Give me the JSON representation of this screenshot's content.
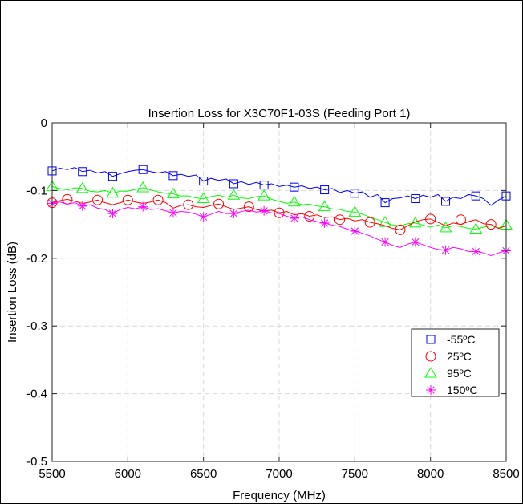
{
  "chart_data": {
    "type": "line",
    "title": "Insertion Loss for X3C70F1-03S (Feeding Port 1)",
    "xlabel": "Frequency (MHz)",
    "ylabel": "Insertion Loss (dB)",
    "xlim": [
      5500,
      8500
    ],
    "ylim": [
      -0.5,
      0
    ],
    "xticks": [
      5500,
      6000,
      6500,
      7000,
      7500,
      8000,
      8500
    ],
    "xtick_labels": [
      "5500",
      "6000",
      "6500",
      "7000",
      "7500",
      "8000",
      "8500"
    ],
    "yticks": [
      0,
      -0.1,
      -0.2,
      -0.3,
      -0.4,
      -0.5
    ],
    "ytick_labels": [
      "0",
      "-0.1",
      "-0.2",
      "-0.3",
      "-0.4",
      "-0.5"
    ],
    "grid": true,
    "legend_position": "lower-right",
    "series": [
      {
        "name": "-55ºC",
        "color": "#0000ff",
        "marker": "square",
        "x": [
          5500,
          5550,
          5600,
          5650,
          5700,
          5750,
          5800,
          5850,
          5900,
          5950,
          6000,
          6050,
          6100,
          6150,
          6200,
          6250,
          6300,
          6350,
          6400,
          6450,
          6500,
          6550,
          6600,
          6650,
          6700,
          6750,
          6800,
          6850,
          6900,
          6950,
          7000,
          7050,
          7100,
          7150,
          7200,
          7250,
          7300,
          7350,
          7400,
          7450,
          7500,
          7550,
          7600,
          7650,
          7700,
          7750,
          7800,
          7850,
          7900,
          7950,
          8000,
          8050,
          8100,
          8150,
          8200,
          8250,
          8300,
          8350,
          8400,
          8450,
          8500
        ],
        "y": [
          -0.071,
          -0.067,
          -0.069,
          -0.066,
          -0.072,
          -0.07,
          -0.074,
          -0.072,
          -0.079,
          -0.075,
          -0.072,
          -0.07,
          -0.069,
          -0.072,
          -0.074,
          -0.072,
          -0.078,
          -0.076,
          -0.079,
          -0.077,
          -0.086,
          -0.082,
          -0.085,
          -0.083,
          -0.09,
          -0.087,
          -0.091,
          -0.088,
          -0.092,
          -0.09,
          -0.094,
          -0.092,
          -0.095,
          -0.093,
          -0.097,
          -0.095,
          -0.099,
          -0.097,
          -0.103,
          -0.1,
          -0.104,
          -0.102,
          -0.11,
          -0.106,
          -0.118,
          -0.112,
          -0.111,
          -0.108,
          -0.112,
          -0.107,
          -0.11,
          -0.106,
          -0.116,
          -0.11,
          -0.112,
          -0.106,
          -0.108,
          -0.112,
          -0.122,
          -0.114,
          -0.108
        ],
        "marker_x": [
          5500,
          5700,
          5900,
          6100,
          6300,
          6500,
          6700,
          6900,
          7100,
          7300,
          7500,
          7700,
          7900,
          8100,
          8300,
          8500
        ],
        "marker_y": [
          -0.071,
          -0.072,
          -0.079,
          -0.069,
          -0.078,
          -0.086,
          -0.09,
          -0.092,
          -0.095,
          -0.099,
          -0.104,
          -0.118,
          -0.112,
          -0.116,
          -0.108,
          -0.108
        ]
      },
      {
        "name": "25ºC",
        "color": "#ff0000",
        "marker": "circle",
        "x": [
          5500,
          5550,
          5600,
          5650,
          5700,
          5750,
          5800,
          5850,
          5900,
          5950,
          6000,
          6050,
          6100,
          6150,
          6200,
          6250,
          6300,
          6350,
          6400,
          6450,
          6500,
          6550,
          6600,
          6650,
          6700,
          6750,
          6800,
          6850,
          6900,
          6950,
          7000,
          7050,
          7100,
          7150,
          7200,
          7250,
          7300,
          7350,
          7400,
          7450,
          7500,
          7550,
          7600,
          7650,
          7700,
          7750,
          7800,
          7850,
          7900,
          7950,
          8000,
          8050,
          8100,
          8150,
          8200,
          8250,
          8300,
          8350,
          8400,
          8450,
          8500
        ],
        "y": [
          -0.118,
          -0.115,
          -0.113,
          -0.116,
          -0.119,
          -0.117,
          -0.114,
          -0.118,
          -0.121,
          -0.118,
          -0.114,
          -0.117,
          -0.119,
          -0.117,
          -0.114,
          -0.118,
          -0.126,
          -0.122,
          -0.121,
          -0.124,
          -0.125,
          -0.122,
          -0.12,
          -0.124,
          -0.128,
          -0.126,
          -0.124,
          -0.128,
          -0.13,
          -0.129,
          -0.133,
          -0.131,
          -0.136,
          -0.134,
          -0.138,
          -0.136,
          -0.14,
          -0.139,
          -0.143,
          -0.141,
          -0.145,
          -0.143,
          -0.147,
          -0.149,
          -0.152,
          -0.156,
          -0.158,
          -0.152,
          -0.146,
          -0.143,
          -0.142,
          -0.147,
          -0.152,
          -0.148,
          -0.15,
          -0.146,
          -0.143,
          -0.149,
          -0.15,
          -0.156,
          -0.152
        ],
        "marker_x": [
          5500,
          5600,
          5800,
          6000,
          6200,
          6400,
          6600,
          6800,
          7000,
          7200,
          7400,
          7600,
          7800,
          8000,
          8200,
          8400
        ],
        "marker_y": [
          -0.118,
          -0.113,
          -0.114,
          -0.114,
          -0.114,
          -0.121,
          -0.12,
          -0.124,
          -0.133,
          -0.138,
          -0.143,
          -0.147,
          -0.158,
          -0.142,
          -0.143,
          -0.15
        ]
      },
      {
        "name": "95ºC",
        "color": "#00ff00",
        "marker": "triangle",
        "x": [
          5500,
          5550,
          5600,
          5650,
          5700,
          5750,
          5800,
          5850,
          5900,
          5950,
          6000,
          6050,
          6100,
          6150,
          6200,
          6250,
          6300,
          6350,
          6400,
          6450,
          6500,
          6550,
          6600,
          6650,
          6700,
          6750,
          6800,
          6850,
          6900,
          6950,
          7000,
          7050,
          7100,
          7150,
          7200,
          7250,
          7300,
          7350,
          7400,
          7450,
          7500,
          7550,
          7600,
          7650,
          7700,
          7750,
          7800,
          7850,
          7900,
          7950,
          8000,
          8050,
          8100,
          8150,
          8200,
          8250,
          8300,
          8350,
          8400,
          8450,
          8500
        ],
        "y": [
          -0.094,
          -0.097,
          -0.099,
          -0.096,
          -0.097,
          -0.101,
          -0.102,
          -0.1,
          -0.104,
          -0.101,
          -0.101,
          -0.098,
          -0.096,
          -0.099,
          -0.102,
          -0.104,
          -0.105,
          -0.108,
          -0.108,
          -0.111,
          -0.112,
          -0.109,
          -0.107,
          -0.11,
          -0.107,
          -0.111,
          -0.112,
          -0.109,
          -0.108,
          -0.113,
          -0.116,
          -0.119,
          -0.117,
          -0.121,
          -0.12,
          -0.123,
          -0.124,
          -0.127,
          -0.128,
          -0.131,
          -0.132,
          -0.135,
          -0.139,
          -0.143,
          -0.147,
          -0.151,
          -0.152,
          -0.149,
          -0.148,
          -0.151,
          -0.154,
          -0.151,
          -0.155,
          -0.152,
          -0.153,
          -0.156,
          -0.157,
          -0.154,
          -0.152,
          -0.155,
          -0.151
        ],
        "marker_x": [
          5500,
          5700,
          5900,
          6100,
          6300,
          6500,
          6700,
          6900,
          7100,
          7300,
          7500,
          7700,
          7900,
          8100,
          8300,
          8500
        ],
        "marker_y": [
          -0.094,
          -0.097,
          -0.104,
          -0.096,
          -0.105,
          -0.112,
          -0.107,
          -0.108,
          -0.117,
          -0.124,
          -0.132,
          -0.147,
          -0.148,
          -0.155,
          -0.157,
          -0.151
        ]
      },
      {
        "name": "150ºC",
        "color": "#ff00ff",
        "marker": "asterisk",
        "x": [
          5500,
          5550,
          5600,
          5650,
          5700,
          5750,
          5800,
          5850,
          5900,
          5950,
          6000,
          6050,
          6100,
          6150,
          6200,
          6250,
          6300,
          6350,
          6400,
          6450,
          6500,
          6550,
          6600,
          6650,
          6700,
          6750,
          6800,
          6850,
          6900,
          6950,
          7000,
          7050,
          7100,
          7150,
          7200,
          7250,
          7300,
          7350,
          7400,
          7450,
          7500,
          7550,
          7600,
          7650,
          7700,
          7750,
          7800,
          7850,
          7900,
          7950,
          8000,
          8050,
          8100,
          8150,
          8200,
          8250,
          8300,
          8350,
          8400,
          8450,
          8500
        ],
        "y": [
          -0.119,
          -0.117,
          -0.12,
          -0.118,
          -0.123,
          -0.121,
          -0.126,
          -0.128,
          -0.134,
          -0.128,
          -0.125,
          -0.127,
          -0.124,
          -0.128,
          -0.127,
          -0.13,
          -0.133,
          -0.131,
          -0.132,
          -0.135,
          -0.139,
          -0.135,
          -0.131,
          -0.134,
          -0.134,
          -0.131,
          -0.129,
          -0.132,
          -0.13,
          -0.133,
          -0.134,
          -0.138,
          -0.141,
          -0.139,
          -0.143,
          -0.146,
          -0.148,
          -0.151,
          -0.153,
          -0.157,
          -0.16,
          -0.163,
          -0.167,
          -0.172,
          -0.176,
          -0.181,
          -0.184,
          -0.179,
          -0.176,
          -0.18,
          -0.184,
          -0.187,
          -0.188,
          -0.184,
          -0.186,
          -0.19,
          -0.19,
          -0.192,
          -0.196,
          -0.192,
          -0.189
        ],
        "marker_x": [
          5500,
          5700,
          5900,
          6100,
          6300,
          6500,
          6700,
          6900,
          7100,
          7300,
          7500,
          7700,
          7900,
          8100,
          8300,
          8500
        ],
        "marker_y": [
          -0.119,
          -0.123,
          -0.134,
          -0.124,
          -0.133,
          -0.139,
          -0.134,
          -0.13,
          -0.141,
          -0.148,
          -0.16,
          -0.176,
          -0.176,
          -0.188,
          -0.19,
          -0.189
        ]
      }
    ]
  }
}
